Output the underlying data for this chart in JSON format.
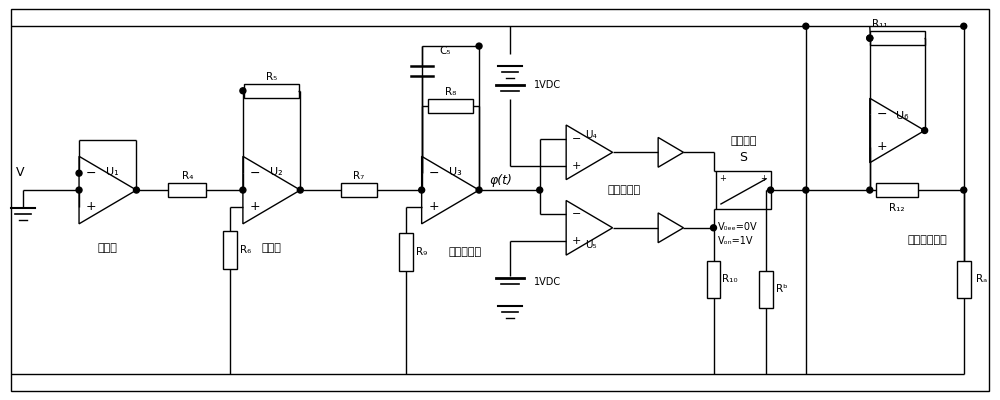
{
  "bg_color": "#ffffff",
  "line_color": "#000000",
  "line_width": 1.0,
  "fig_width": 10.0,
  "fig_height": 4.0,
  "labels": {
    "U1": "U₁",
    "U2": "U₂",
    "U3": "U₃",
    "U4": "U₄",
    "U5": "U₅",
    "U6": "U₆",
    "R4": "R₄",
    "R5": "R₅",
    "R6": "R₆",
    "R7": "R₇",
    "R8": "R₈",
    "R9": "R₉",
    "R10": "R₁₀",
    "R11": "R₁₁",
    "R12": "R₁₂",
    "Ra": "Rₐ",
    "Rb": "Rᵇ",
    "C5": "C₅",
    "phi": "φ(t)",
    "v": "V",
    "follower": "跟随器",
    "inverter": "反相器",
    "inv_integrator": "反相积分器",
    "window_comp": "窗口比较器",
    "vcs": "压控开关",
    "S": "S",
    "neg_imp": "负阳抗转换器",
    "1VDC": "1VDC",
    "Voff": "V₀ₑₑ=0V",
    "Von": "Vₒₙ=1V",
    "minus": "−",
    "plus": "+"
  }
}
